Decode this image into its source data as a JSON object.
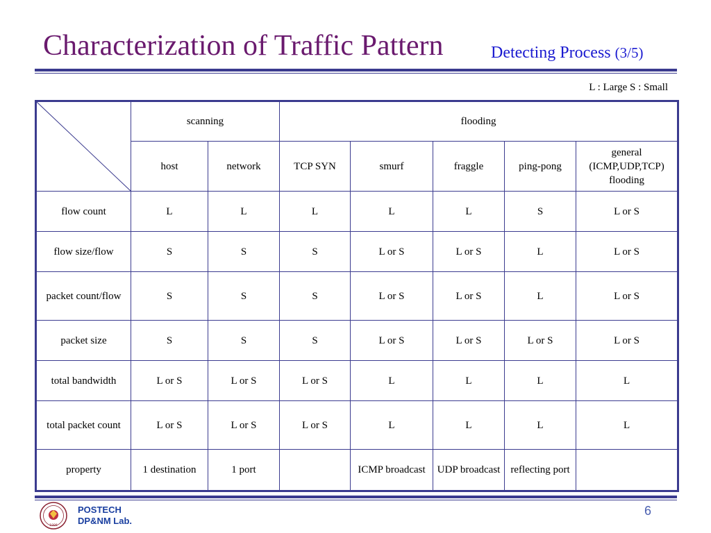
{
  "slide": {
    "title": "Characterization of Traffic Pattern",
    "subtitle": "Detecting Process",
    "subtitle_page": "(3/5)",
    "legend": "L : Large S : Small",
    "page_number": "6"
  },
  "footer": {
    "org_line1": "POSTECH",
    "org_line2": "DP&NM Lab.",
    "logo_year": "1986"
  },
  "colors": {
    "title": "#6a1a6e",
    "subtitle": "#1a1ad0",
    "rule": "#3b3b8f",
    "footer_text": "#1a3fa0"
  },
  "table": {
    "groups": [
      "scanning",
      "flooding"
    ],
    "columns": [
      "host",
      "network",
      "TCP SYN",
      "smurf",
      "fraggle",
      "ping-pong",
      "general (ICMP,UDP,TCP) flooding"
    ],
    "rows": [
      {
        "label": "flow count",
        "cells": [
          "L",
          "L",
          "L",
          "L",
          "L",
          "S",
          "L or S"
        ]
      },
      {
        "label": "flow size/flow",
        "cells": [
          "S",
          "S",
          "S",
          "L or S",
          "L or S",
          "L",
          "L or S"
        ]
      },
      {
        "label": "packet count/flow",
        "cells": [
          "S",
          "S",
          "S",
          "L or S",
          "L or S",
          "L",
          "L or S"
        ]
      },
      {
        "label": "packet size",
        "cells": [
          "S",
          "S",
          "S",
          "L or S",
          "L or S",
          "L or S",
          "L or S"
        ]
      },
      {
        "label": "total bandwidth",
        "cells": [
          "L or S",
          "L or S",
          "L or S",
          "L",
          "L",
          "L",
          "L"
        ]
      },
      {
        "label": "total packet count",
        "cells": [
          "L or S",
          "L or S",
          "L or S",
          "L",
          "L",
          "L",
          "L"
        ]
      },
      {
        "label": "property",
        "cells": [
          "1 destination",
          "1 port",
          "",
          "ICMP broadcast",
          "UDP broadcast",
          "reflecting port",
          ""
        ]
      }
    ]
  }
}
